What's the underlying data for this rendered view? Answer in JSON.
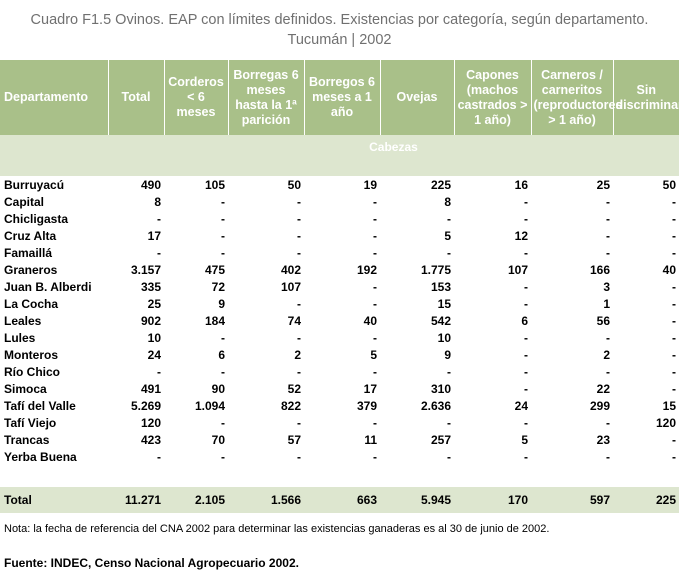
{
  "title_line1": "Cuadro F1.5 Ovinos. EAP con límites definidos. Existencias por categoría, según departamento.",
  "title_line2": "Tucumán | 2002",
  "headers": {
    "departamento": "Departamento",
    "total": "Total",
    "corderos": "Corderos < 6 meses",
    "borregas": "Borregas 6 meses hasta la 1ª parición",
    "borregos": "Borregos 6 meses a 1 año",
    "ovejas": "Ovejas",
    "capones": "Capones (machos castrados > 1 año)",
    "carneros": "Carneros / carneritos (reproductores > 1 año)",
    "sin_discriminar": "Sin discriminar"
  },
  "units_label": "Cabezas",
  "rows": [
    {
      "name": "Burruyacú",
      "total": "490",
      "corderos": "105",
      "borregas": "50",
      "borregos": "19",
      "ovejas": "225",
      "capones": "16",
      "carneros": "25",
      "sin": "50"
    },
    {
      "name": "Capital",
      "total": "8",
      "corderos": "-",
      "borregas": "-",
      "borregos": "-",
      "ovejas": "8",
      "capones": "-",
      "carneros": "-",
      "sin": "-"
    },
    {
      "name": "Chicligasta",
      "total": "-",
      "corderos": "-",
      "borregas": "-",
      "borregos": "-",
      "ovejas": "-",
      "capones": "-",
      "carneros": "-",
      "sin": "-"
    },
    {
      "name": "Cruz Alta",
      "total": "17",
      "corderos": "-",
      "borregas": "-",
      "borregos": "-",
      "ovejas": "5",
      "capones": "12",
      "carneros": "-",
      "sin": "-"
    },
    {
      "name": "Famaillá",
      "total": "-",
      "corderos": "-",
      "borregas": "-",
      "borregos": "-",
      "ovejas": "-",
      "capones": "-",
      "carneros": "-",
      "sin": "-"
    },
    {
      "name": "Graneros",
      "total": "3.157",
      "corderos": "475",
      "borregas": "402",
      "borregos": "192",
      "ovejas": "1.775",
      "capones": "107",
      "carneros": "166",
      "sin": "40"
    },
    {
      "name": "Juan B. Alberdi",
      "total": "335",
      "corderos": "72",
      "borregas": "107",
      "borregos": "-",
      "ovejas": "153",
      "capones": "-",
      "carneros": "3",
      "sin": "-"
    },
    {
      "name": "La Cocha",
      "total": "25",
      "corderos": "9",
      "borregas": "-",
      "borregos": "-",
      "ovejas": "15",
      "capones": "-",
      "carneros": "1",
      "sin": "-"
    },
    {
      "name": "Leales",
      "total": "902",
      "corderos": "184",
      "borregas": "74",
      "borregos": "40",
      "ovejas": "542",
      "capones": "6",
      "carneros": "56",
      "sin": "-"
    },
    {
      "name": "Lules",
      "total": "10",
      "corderos": "-",
      "borregas": "-",
      "borregos": "-",
      "ovejas": "10",
      "capones": "-",
      "carneros": "-",
      "sin": "-"
    },
    {
      "name": "Monteros",
      "total": "24",
      "corderos": "6",
      "borregas": "2",
      "borregos": "5",
      "ovejas": "9",
      "capones": "-",
      "carneros": "2",
      "sin": "-"
    },
    {
      "name": "Río Chico",
      "total": "-",
      "corderos": "-",
      "borregas": "-",
      "borregos": "-",
      "ovejas": "-",
      "capones": "-",
      "carneros": "-",
      "sin": "-"
    },
    {
      "name": "Simoca",
      "total": "491",
      "corderos": "90",
      "borregas": "52",
      "borregos": "17",
      "ovejas": "310",
      "capones": "-",
      "carneros": "22",
      "sin": "-"
    },
    {
      "name": "Tafí del Valle",
      "total": "5.269",
      "corderos": "1.094",
      "borregas": "822",
      "borregos": "379",
      "ovejas": "2.636",
      "capones": "24",
      "carneros": "299",
      "sin": "15"
    },
    {
      "name": "Tafí Viejo",
      "total": "120",
      "corderos": "-",
      "borregas": "-",
      "borregos": "-",
      "ovejas": "-",
      "capones": "-",
      "carneros": "-",
      "sin": "120"
    },
    {
      "name": "Trancas",
      "total": "423",
      "corderos": "70",
      "borregas": "57",
      "borregos": "11",
      "ovejas": "257",
      "capones": "5",
      "carneros": "23",
      "sin": "-"
    },
    {
      "name": "Yerba Buena",
      "total": "-",
      "corderos": "-",
      "borregas": "-",
      "borregos": "-",
      "ovejas": "-",
      "capones": "-",
      "carneros": "-",
      "sin": "-"
    }
  ],
  "total_row": {
    "name": "Total",
    "total": "11.271",
    "corderos": "2.105",
    "borregas": "1.566",
    "borregos": "663",
    "ovejas": "5.945",
    "capones": "170",
    "carneros": "597",
    "sin": "225"
  },
  "note": "Nota: la fecha de referencia del CNA 2002 para determinar las existencias ganaderas es al 30 de junio de 2002.",
  "source": "Fuente: INDEC, Censo Nacional Agropecuario 2002.",
  "colors": {
    "header_bg": "#a9c089",
    "band_bg": "#dde6cf",
    "title_text": "#707070"
  }
}
